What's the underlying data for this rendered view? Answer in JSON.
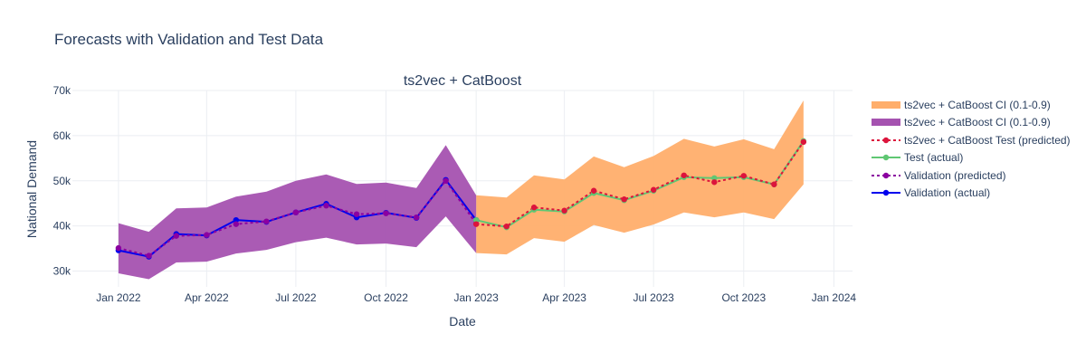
{
  "figure": {
    "title": "Forecasts with Validation and Test Data"
  },
  "chart_data": {
    "type": "line",
    "subplot_title": "ts2vec + CatBoost",
    "xlabel": "Date",
    "ylabel": "National Demand",
    "x_ticks": [
      "Jan 2022",
      "Apr 2022",
      "Jul 2022",
      "Oct 2022",
      "Jan 2023",
      "Apr 2023",
      "Jul 2023",
      "Oct 2023",
      "Jan 2024"
    ],
    "y_ticks": [
      "30k",
      "40k",
      "50k",
      "60k",
      "70k"
    ],
    "ylim": [
      26500,
      70000
    ],
    "xlim": [
      "2021-11-15",
      "2024-01-20"
    ],
    "grid": true,
    "legend_position": "right",
    "colors": {
      "ci_validation": "#a552b0",
      "ci_test": "#ffae6b",
      "test_predicted": "#dc143c",
      "test_actual": "#5fc773",
      "validation_predicted": "#8b00a0",
      "validation_actual": "#0000ee"
    },
    "series": [
      {
        "name": "ts2vec + CatBoost CI (0.1-0.9)",
        "kind": "band",
        "color_key": "ci_test",
        "x": [
          "2023-01-01",
          "2023-02-01",
          "2023-03-01",
          "2023-04-01",
          "2023-05-01",
          "2023-06-01",
          "2023-07-01",
          "2023-08-01",
          "2023-09-01",
          "2023-10-01",
          "2023-11-01",
          "2023-12-01"
        ],
        "upper": [
          46800,
          46300,
          51200,
          50300,
          55400,
          53000,
          55500,
          59300,
          57600,
          59200,
          57000,
          67800
        ],
        "lower": [
          34000,
          33700,
          37300,
          36500,
          40200,
          38500,
          40300,
          43000,
          41900,
          43000,
          41500,
          49200
        ]
      },
      {
        "name": "ts2vec + CatBoost CI (0.1-0.9)",
        "kind": "band",
        "color_key": "ci_validation",
        "x": [
          "2022-01-01",
          "2022-02-01",
          "2022-03-01",
          "2022-04-01",
          "2022-05-01",
          "2022-06-01",
          "2022-07-01",
          "2022-08-01",
          "2022-09-01",
          "2022-10-01",
          "2022-11-01",
          "2022-12-01",
          "2023-01-01"
        ],
        "upper": [
          40600,
          38700,
          43900,
          44100,
          46500,
          47600,
          50000,
          51400,
          49300,
          49600,
          48400,
          57900,
          46800
        ],
        "lower": [
          29500,
          28200,
          31900,
          32100,
          33900,
          34700,
          36400,
          37400,
          35900,
          36100,
          35300,
          42100,
          34000
        ]
      },
      {
        "name": "ts2vec + CatBoost Test (predicted)",
        "kind": "line",
        "dash": true,
        "color_key": "test_predicted",
        "x": [
          "2023-01-01",
          "2023-02-01",
          "2023-03-01",
          "2023-04-01",
          "2023-05-01",
          "2023-06-01",
          "2023-07-01",
          "2023-08-01",
          "2023-09-01",
          "2023-10-01",
          "2023-11-01",
          "2023-12-01"
        ],
        "y": [
          40400,
          39900,
          44100,
          43400,
          47800,
          45900,
          48000,
          51200,
          49700,
          51100,
          49200,
          58600
        ]
      },
      {
        "name": "Test (actual)",
        "kind": "line",
        "dash": false,
        "color_key": "test_actual",
        "x": [
          "2023-01-01",
          "2023-02-01",
          "2023-03-01",
          "2023-04-01",
          "2023-05-01",
          "2023-06-01",
          "2023-07-01",
          "2023-08-01",
          "2023-09-01",
          "2023-10-01",
          "2023-11-01",
          "2023-12-01"
        ],
        "y": [
          41300,
          39700,
          43600,
          43200,
          47300,
          45700,
          47800,
          50800,
          50600,
          50800,
          49200,
          58800
        ]
      },
      {
        "name": "Validation (predicted)",
        "kind": "line",
        "dash": true,
        "color_key": "validation_predicted",
        "x": [
          "2022-01-01",
          "2022-02-01",
          "2022-03-01",
          "2022-04-01",
          "2022-05-01",
          "2022-06-01",
          "2022-07-01",
          "2022-08-01",
          "2022-09-01",
          "2022-10-01",
          "2022-11-01",
          "2022-12-01",
          "2023-01-01"
        ],
        "y": [
          35100,
          33400,
          37800,
          38000,
          40400,
          41000,
          43000,
          44500,
          42600,
          42800,
          41900,
          50000,
          40500
        ]
      },
      {
        "name": "Validation (actual)",
        "kind": "line",
        "dash": false,
        "color_key": "validation_actual",
        "x": [
          "2022-01-01",
          "2022-02-01",
          "2022-03-01",
          "2022-04-01",
          "2022-05-01",
          "2022-06-01",
          "2022-07-01",
          "2022-08-01",
          "2022-09-01",
          "2022-10-01",
          "2022-11-01",
          "2022-12-01",
          "2023-01-01"
        ],
        "y": [
          34600,
          33200,
          38200,
          37900,
          41300,
          40900,
          43000,
          44900,
          41900,
          42900,
          41800,
          50200,
          41300
        ]
      }
    ]
  }
}
